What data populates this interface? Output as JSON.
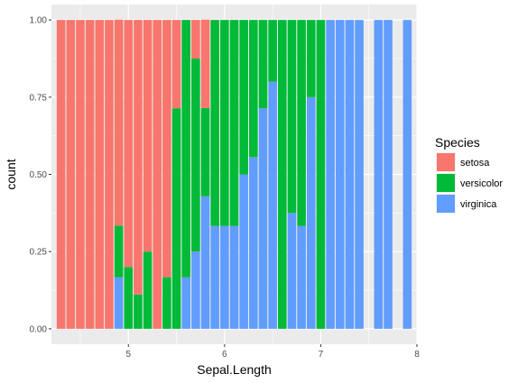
{
  "chart_data": {
    "type": "bar",
    "subtype": "stacked-fill",
    "x": [
      4.3,
      4.4,
      4.5,
      4.6,
      4.7,
      4.8,
      4.9,
      5.0,
      5.1,
      5.2,
      5.3,
      5.4,
      5.5,
      5.6,
      5.7,
      5.8,
      5.9,
      6.0,
      6.1,
      6.2,
      6.3,
      6.4,
      6.5,
      6.6,
      6.7,
      6.8,
      6.9,
      7.0,
      7.1,
      7.2,
      7.3,
      7.4,
      7.6,
      7.7,
      7.9
    ],
    "series": [
      {
        "name": "setosa",
        "color": "#F8766D",
        "values": [
          1,
          1,
          1,
          1,
          1,
          1,
          0.667,
          0.8,
          0.889,
          0.75,
          1,
          0.833,
          0.286,
          0,
          0.125,
          0.286,
          0,
          0,
          0,
          0,
          0,
          0,
          0,
          0,
          0,
          0,
          0,
          0,
          0,
          0,
          0,
          0,
          0,
          0,
          0
        ]
      },
      {
        "name": "versicolor",
        "color": "#00BA38",
        "values": [
          0,
          0,
          0,
          0,
          0,
          0,
          0.167,
          0.2,
          0.111,
          0.25,
          0,
          0.167,
          0.714,
          0.833,
          0.625,
          0.286,
          0.667,
          0.667,
          0.667,
          0.5,
          0.444,
          0.286,
          0.2,
          1,
          0.625,
          0.667,
          0.25,
          1,
          0,
          0,
          0,
          0,
          0,
          0,
          0
        ]
      },
      {
        "name": "virginica",
        "color": "#619CFF",
        "values": [
          0,
          0,
          0,
          0,
          0,
          0,
          0.167,
          0,
          0,
          0,
          0,
          0,
          0,
          0.167,
          0.25,
          0.429,
          0.333,
          0.333,
          0.333,
          0.5,
          0.556,
          0.714,
          0.8,
          0,
          0.375,
          0.333,
          0.75,
          0,
          1,
          1,
          1,
          1,
          1,
          1,
          1
        ]
      }
    ],
    "xlabel": "Sepal.Length",
    "ylabel": "count",
    "xlim": [
      4.2,
      8.0
    ],
    "ylim": [
      -0.05,
      1.05
    ],
    "xticks": [
      5,
      6,
      7,
      8
    ],
    "yticks": [
      0.0,
      0.25,
      0.5,
      0.75,
      1.0
    ],
    "ytick_labels": [
      "0.00",
      "0.25",
      "0.50",
      "0.75",
      "1.00"
    ],
    "legend": {
      "title": "Species",
      "position": "right",
      "entries": [
        "setosa",
        "versicolor",
        "virginica"
      ]
    },
    "grid": true,
    "panel_background": "#EBEBEB"
  }
}
